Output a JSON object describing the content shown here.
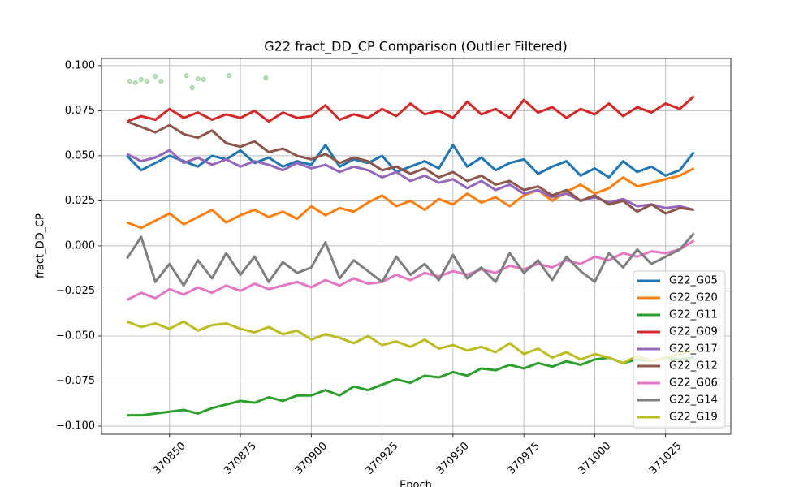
{
  "chart_data": {
    "type": "line",
    "title": "G22 fract_DD_CP Comparison (Outlier Filtered)",
    "xlabel": "Epoch",
    "ylabel": "fract_DD_CP",
    "x": [
      370835,
      370840,
      370845,
      370850,
      370855,
      370860,
      370865,
      370870,
      370875,
      370880,
      370885,
      370890,
      370895,
      370900,
      370905,
      370910,
      370915,
      370920,
      370925,
      370930,
      370935,
      370940,
      370945,
      370950,
      370955,
      370960,
      370965,
      370970,
      370975,
      370980,
      370985,
      370990,
      370995,
      371000,
      371005,
      371010,
      371015,
      371020,
      371025,
      371030,
      371035
    ],
    "series": [
      {
        "name": "G22_G05",
        "color": "#1f77b4",
        "values": [
          0.05,
          0.042,
          0.046,
          0.05,
          0.047,
          0.044,
          0.05,
          0.048,
          0.053,
          0.046,
          0.049,
          0.044,
          0.047,
          0.045,
          0.056,
          0.044,
          0.048,
          0.046,
          0.05,
          0.041,
          0.044,
          0.047,
          0.043,
          0.056,
          0.044,
          0.049,
          0.042,
          0.046,
          0.048,
          0.04,
          0.044,
          0.047,
          0.039,
          0.043,
          0.038,
          0.047,
          0.041,
          0.044,
          0.039,
          0.042,
          0.052
        ]
      },
      {
        "name": "G22_G20",
        "color": "#ff7f0e",
        "values": [
          0.013,
          0.01,
          0.014,
          0.018,
          0.012,
          0.016,
          0.02,
          0.013,
          0.017,
          0.02,
          0.016,
          0.019,
          0.015,
          0.022,
          0.017,
          0.021,
          0.019,
          0.024,
          0.028,
          0.022,
          0.025,
          0.02,
          0.026,
          0.023,
          0.029,
          0.024,
          0.027,
          0.022,
          0.028,
          0.031,
          0.025,
          0.03,
          0.034,
          0.029,
          0.032,
          0.038,
          0.033,
          0.035,
          0.037,
          0.039,
          0.043
        ]
      },
      {
        "name": "G22_G11",
        "color": "#2ca02c",
        "values": [
          -0.094,
          -0.094,
          -0.093,
          -0.092,
          -0.091,
          -0.093,
          -0.09,
          -0.088,
          -0.086,
          -0.087,
          -0.084,
          -0.086,
          -0.083,
          -0.083,
          -0.08,
          -0.083,
          -0.078,
          -0.08,
          -0.077,
          -0.074,
          -0.076,
          -0.072,
          -0.073,
          -0.07,
          -0.072,
          -0.068,
          -0.069,
          -0.066,
          -0.068,
          -0.065,
          -0.067,
          -0.064,
          -0.066,
          -0.063,
          -0.062,
          -0.065,
          -0.063,
          -0.064,
          -0.062,
          -0.063,
          -0.062
        ]
      },
      {
        "name": "G22_G09",
        "color": "#d62728",
        "values": [
          0.069,
          0.072,
          0.07,
          0.076,
          0.071,
          0.074,
          0.07,
          0.073,
          0.071,
          0.075,
          0.069,
          0.074,
          0.071,
          0.072,
          0.078,
          0.07,
          0.073,
          0.071,
          0.076,
          0.072,
          0.079,
          0.073,
          0.075,
          0.071,
          0.08,
          0.073,
          0.076,
          0.071,
          0.081,
          0.074,
          0.077,
          0.071,
          0.076,
          0.073,
          0.079,
          0.072,
          0.077,
          0.074,
          0.079,
          0.076,
          0.083
        ]
      },
      {
        "name": "G22_G17",
        "color": "#9467bd",
        "values": [
          0.051,
          0.047,
          0.049,
          0.053,
          0.046,
          0.049,
          0.045,
          0.048,
          0.044,
          0.047,
          0.045,
          0.042,
          0.046,
          0.043,
          0.045,
          0.041,
          0.044,
          0.042,
          0.038,
          0.041,
          0.036,
          0.039,
          0.035,
          0.037,
          0.032,
          0.036,
          0.031,
          0.034,
          0.029,
          0.031,
          0.027,
          0.029,
          0.025,
          0.027,
          0.024,
          0.026,
          0.022,
          0.023,
          0.021,
          0.022,
          0.02
        ]
      },
      {
        "name": "G22_G12",
        "color": "#8c564b",
        "values": [
          0.069,
          0.066,
          0.063,
          0.067,
          0.062,
          0.06,
          0.064,
          0.057,
          0.055,
          0.058,
          0.052,
          0.054,
          0.05,
          0.048,
          0.051,
          0.046,
          0.049,
          0.047,
          0.042,
          0.044,
          0.04,
          0.043,
          0.038,
          0.041,
          0.036,
          0.039,
          0.034,
          0.036,
          0.031,
          0.033,
          0.028,
          0.031,
          0.025,
          0.028,
          0.023,
          0.025,
          0.019,
          0.023,
          0.018,
          0.021,
          0.02
        ]
      },
      {
        "name": "G22_G06",
        "color": "#e377c2",
        "values": [
          -0.03,
          -0.026,
          -0.029,
          -0.024,
          -0.027,
          -0.023,
          -0.026,
          -0.022,
          -0.025,
          -0.021,
          -0.024,
          -0.022,
          -0.02,
          -0.023,
          -0.019,
          -0.022,
          -0.018,
          -0.021,
          -0.02,
          -0.016,
          -0.019,
          -0.015,
          -0.017,
          -0.014,
          -0.016,
          -0.013,
          -0.015,
          -0.011,
          -0.013,
          -0.01,
          -0.012,
          -0.008,
          -0.01,
          -0.006,
          -0.008,
          -0.004,
          -0.006,
          -0.003,
          -0.004,
          -0.002,
          0.003
        ]
      },
      {
        "name": "G22_G14",
        "color": "#7f7f7f",
        "values": [
          -0.007,
          0.005,
          -0.02,
          -0.01,
          -0.022,
          -0.008,
          -0.018,
          -0.004,
          -0.016,
          -0.006,
          -0.02,
          -0.009,
          -0.015,
          -0.012,
          0.002,
          -0.018,
          -0.008,
          -0.014,
          -0.02,
          -0.006,
          -0.016,
          -0.01,
          -0.019,
          -0.005,
          -0.018,
          -0.012,
          -0.02,
          -0.004,
          -0.015,
          -0.008,
          -0.019,
          -0.006,
          -0.014,
          -0.02,
          -0.004,
          -0.012,
          -0.002,
          -0.01,
          -0.006,
          -0.002,
          0.007
        ]
      },
      {
        "name": "G22_G19",
        "color": "#bcbd22",
        "values": [
          -0.042,
          -0.045,
          -0.043,
          -0.046,
          -0.042,
          -0.047,
          -0.044,
          -0.043,
          -0.046,
          -0.048,
          -0.045,
          -0.049,
          -0.047,
          -0.052,
          -0.049,
          -0.051,
          -0.054,
          -0.05,
          -0.055,
          -0.053,
          -0.056,
          -0.052,
          -0.057,
          -0.055,
          -0.058,
          -0.056,
          -0.059,
          -0.054,
          -0.06,
          -0.057,
          -0.062,
          -0.059,
          -0.063,
          -0.06,
          -0.062,
          -0.065,
          -0.061,
          -0.064,
          -0.062,
          -0.06,
          -0.058
        ]
      }
    ],
    "outliers": {
      "color": "#2ca02c",
      "x": [
        370836,
        370838,
        370840,
        370842,
        370845,
        370847,
        370856,
        370858,
        370860,
        370862,
        370871,
        370884
      ],
      "values": [
        0.0914,
        0.0905,
        0.0923,
        0.0914,
        0.0941,
        0.0914,
        0.0945,
        0.0878,
        0.0927,
        0.0923,
        0.0945,
        0.0932
      ]
    },
    "xlim": [
      370826,
      371048
    ],
    "ylim": [
      -0.1045,
      0.104
    ],
    "xticks": [
      370850,
      370875,
      370900,
      370925,
      370950,
      370975,
      371000,
      371025
    ],
    "yticks": [
      {
        "value": -0.1,
        "label": "−0.100"
      },
      {
        "value": -0.075,
        "label": "−0.075"
      },
      {
        "value": -0.05,
        "label": "−0.050"
      },
      {
        "value": -0.025,
        "label": "−0.025"
      },
      {
        "value": 0,
        "label": "0.000"
      },
      {
        "value": 0.025,
        "label": "0.025"
      },
      {
        "value": 0.05,
        "label": "0.050"
      },
      {
        "value": 0.075,
        "label": "0.075"
      },
      {
        "value": 0.1,
        "label": "0.100"
      }
    ],
    "grid": true,
    "legend": "lower right"
  }
}
